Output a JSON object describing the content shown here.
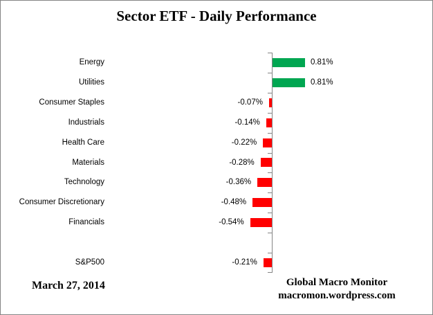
{
  "title": "Sector ETF - Daily Performance",
  "footer": {
    "date": "March 27, 2014",
    "source_line1": "Global Macro Monitor",
    "source_line2": "macromon.wordpress.com"
  },
  "colors": {
    "positive_bar": "#00A651",
    "negative_bar": "#FF0000",
    "axis": "#848484",
    "frame_border": "#848484",
    "text": "#000000",
    "background": "#FFFFFF"
  },
  "chart_data": {
    "type": "bar",
    "orientation": "horizontal",
    "title": "Sector ETF - Daily Performance",
    "xlabel": "",
    "ylabel": "",
    "value_unit": "percent",
    "xlim": [
      -0.6,
      0.9
    ],
    "grid": false,
    "legend": false,
    "categories": [
      "Energy",
      "Utilities",
      "Consumer Staples",
      "Industrials",
      "Health Care",
      "Materials",
      "Technology",
      "Consumer Discretionary",
      "Financials",
      "",
      "S&P500"
    ],
    "values": [
      0.81,
      0.81,
      -0.07,
      -0.14,
      -0.22,
      -0.28,
      -0.36,
      -0.48,
      -0.54,
      null,
      -0.21
    ],
    "data_labels": [
      "0.81%",
      "0.81%",
      "-0.07%",
      "-0.14%",
      "-0.22%",
      "-0.28%",
      "-0.36%",
      "-0.48%",
      "-0.54%",
      "",
      "-0.21%"
    ]
  }
}
